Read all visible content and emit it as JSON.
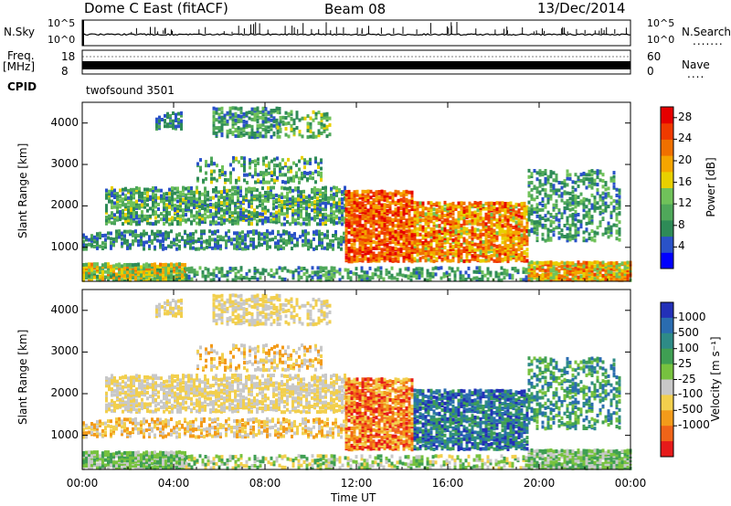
{
  "header": {
    "title": "Dome C East (fitACF)",
    "beam": "Beam 08",
    "date": "13/Dec/2014"
  },
  "strip": {
    "nsky_label": "N.Sky",
    "nsky_top": "10^5",
    "nsky_bottom": "10^0",
    "nsearch_label": "N.Search",
    "nsearch_dots": ".......",
    "nsearch_top": "10^5",
    "nsearch_bottom": "10^0",
    "freq_label": "Freq.",
    "freq_unit": "[MHz]",
    "freq_top": "18",
    "freq_bottom": "8",
    "nave_label": "Nave",
    "nave_dots": "....",
    "nave_top": "60",
    "nave_bottom": "0",
    "cpid_label": "CPID",
    "cpid_value": "twofsound 3501"
  },
  "colors": {
    "power": [
      "#0000ff",
      "#2a52c8",
      "#2e8b57",
      "#4fa85a",
      "#70c25a",
      "#e8d000",
      "#f5a500",
      "#f07000",
      "#f03a00",
      "#e60000"
    ],
    "velocity": [
      "#2330b8",
      "#2a6cb0",
      "#2e8b87",
      "#3f9f53",
      "#77c23f",
      "#c8c8c8",
      "#f2cf4d",
      "#f39b1a",
      "#f06418",
      "#e61a1a"
    ]
  },
  "chart_data": [
    {
      "type": "heatmap",
      "panel": "power",
      "xlabel": "",
      "ylabel": "Slant Range [km]",
      "x_ticks": [
        "00:00",
        "04:00",
        "08:00",
        "12:00",
        "16:00",
        "20:00",
        "00:00"
      ],
      "y_ticks": [
        "1000",
        "2000",
        "3000",
        "4000"
      ],
      "xlim_hours": [
        0,
        24
      ],
      "ylim_km": [
        180,
        4500
      ],
      "colorbar_label": "Power [dB]",
      "colorbar_ticks": [
        "4",
        "8",
        "12",
        "16",
        "20",
        "24",
        "28"
      ],
      "colorbar_range": [
        0,
        30
      ]
    },
    {
      "type": "heatmap",
      "panel": "velocity",
      "xlabel": "Time UT",
      "ylabel": "Slant Range [km]",
      "x_ticks": [
        "00:00",
        "04:00",
        "08:00",
        "12:00",
        "16:00",
        "20:00",
        "00:00"
      ],
      "y_ticks": [
        "1000",
        "2000",
        "3000",
        "4000"
      ],
      "xlim_hours": [
        0,
        24
      ],
      "ylim_km": [
        180,
        4500
      ],
      "colorbar_label": "Velocity [m s⁻¹]",
      "colorbar_ticks": [
        "1000",
        "500",
        "100",
        "25",
        "-25",
        "-100",
        "-500",
        "-1000"
      ]
    }
  ]
}
